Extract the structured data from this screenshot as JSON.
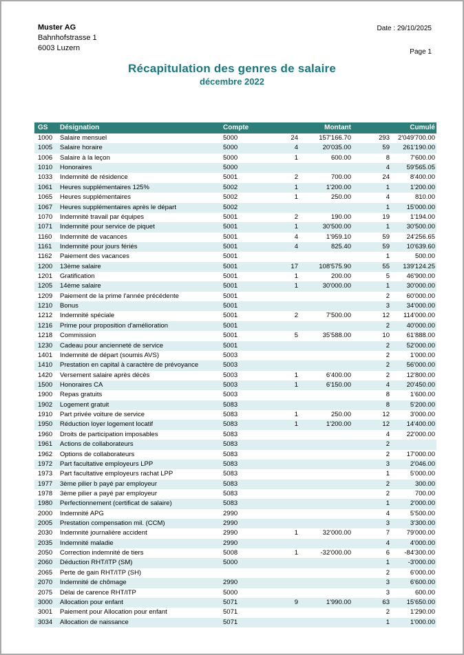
{
  "page": {
    "company": {
      "name": "Muster AG",
      "street": "Bahnhofstrasse 1",
      "city": "6003 Luzern"
    },
    "meta": {
      "date_label": "Date : 29/10/2025",
      "page_label": "Page 1"
    },
    "title": "Récapitulation des genres de salaire",
    "subtitle": "décembre 2022"
  },
  "colors": {
    "accent_teal_band": "#2d7d78",
    "title_teal": "#16797f",
    "row_alt_cyan": "#ddeff0"
  },
  "table": {
    "headers": {
      "gs": "GS",
      "designation": "Désignation",
      "compte": "Compte",
      "montant": "Montant",
      "cumule": "Cumulé"
    },
    "rows": [
      [
        "1000",
        "Salaire mensuel",
        "5000",
        "24",
        "157'166.70",
        "293",
        "2'049'700.00"
      ],
      [
        "1005",
        "Salaire horaire",
        "5000",
        "4",
        "20'035.00",
        "59",
        "261'190.00"
      ],
      [
        "1006",
        "Salaire à la leçon",
        "5000",
        "1",
        "600.00",
        "8",
        "7'600.00"
      ],
      [
        "1010",
        "Honoraires",
        "5000",
        "",
        "",
        "4",
        "59'565.05"
      ],
      [
        "1033",
        "Indemnité de résidence",
        "5001",
        "2",
        "700.00",
        "24",
        "8'400.00"
      ],
      [
        "1061",
        "Heures supplémentaires 125%",
        "5002",
        "1",
        "1'200.00",
        "1",
        "1'200.00"
      ],
      [
        "1065",
        "Heures supplémentaires",
        "5002",
        "1",
        "250.00",
        "4",
        "810.00"
      ],
      [
        "1067",
        "Heures supplémentaires après le départ",
        "5002",
        "",
        "",
        "1",
        "15'000.00"
      ],
      [
        "1070",
        "Indemnité travail par équipes",
        "5001",
        "2",
        "190.00",
        "19",
        "1'194.00"
      ],
      [
        "1071",
        "Indemnité pour service de piquet",
        "5001",
        "1",
        "30'500.00",
        "1",
        "30'500.00"
      ],
      [
        "1160",
        "Indemnité de vacances",
        "5001",
        "4",
        "1'959.10",
        "59",
        "24'256.65"
      ],
      [
        "1161",
        "Indemnité pour jours fériés",
        "5001",
        "4",
        "825.40",
        "59",
        "10'639.60"
      ],
      [
        "1162",
        "Paiement des vacances",
        "5001",
        "",
        "",
        "1",
        "500.00"
      ],
      [
        "1200",
        "13ème salaire",
        "5001",
        "17",
        "108'575.90",
        "55",
        "139'124.25"
      ],
      [
        "1201",
        "Gratification",
        "5001",
        "1",
        "200.00",
        "5",
        "46'900.00"
      ],
      [
        "1205",
        "14ème salaire",
        "5001",
        "1",
        "30'000.00",
        "1",
        "30'000.00"
      ],
      [
        "1209",
        "Paiement de la prime l'année précédente",
        "5001",
        "",
        "",
        "2",
        "60'000.00"
      ],
      [
        "1210",
        "Bonus",
        "5001",
        "",
        "",
        "3",
        "34'000.00"
      ],
      [
        "1212",
        "Indemnité spéciale",
        "5001",
        "2",
        "7'500.00",
        "12",
        "114'000.00"
      ],
      [
        "1216",
        "Prime pour proposition d'amélioration",
        "5001",
        "",
        "",
        "2",
        "40'000.00"
      ],
      [
        "1218",
        "Commission",
        "5001",
        "5",
        "35'588.00",
        "10",
        "61'888.00"
      ],
      [
        "1230",
        "Cadeau pour ancienneté de service",
        "5001",
        "",
        "",
        "2",
        "52'000.00"
      ],
      [
        "1401",
        "Indemnité de départ (soumis AVS)",
        "5003",
        "",
        "",
        "2",
        "1'000.00"
      ],
      [
        "1410",
        "Prestation en capital à caractère de prévoyance",
        "5003",
        "",
        "",
        "2",
        "56'000.00"
      ],
      [
        "1420",
        "Versement salaire après décès",
        "5003",
        "1",
        "6'400.00",
        "2",
        "12'800.00"
      ],
      [
        "1500",
        "Honoraires CA",
        "5003",
        "1",
        "6'150.00",
        "4",
        "20'450.00"
      ],
      [
        "1900",
        "Repas gratuits",
        "5003",
        "",
        "",
        "8",
        "1'600.00"
      ],
      [
        "1902",
        "Logement gratuit",
        "5083",
        "",
        "",
        "8",
        "5'200.00"
      ],
      [
        "1910",
        "Part privée voiture de service",
        "5083",
        "1",
        "250.00",
        "12",
        "3'000.00"
      ],
      [
        "1950",
        "Réduction loyer logement locatif",
        "5083",
        "1",
        "1'200.00",
        "12",
        "14'400.00"
      ],
      [
        "1960",
        "Droits de participation imposables",
        "5083",
        "",
        "",
        "4",
        "22'000.00"
      ],
      [
        "1961",
        "Actions de collaborateurs",
        "5083",
        "",
        "",
        "2",
        ""
      ],
      [
        "1962",
        "Options de collaborateurs",
        "5083",
        "",
        "",
        "2",
        "17'000.00"
      ],
      [
        "1972",
        "Part facultative employeurs LPP",
        "5083",
        "",
        "",
        "3",
        "2'046.00"
      ],
      [
        "1973",
        "Part facultative employeurs rachat LPP",
        "5083",
        "",
        "",
        "1",
        "5'000.00"
      ],
      [
        "1977",
        "3ème pilier b payé par employeur",
        "5083",
        "",
        "",
        "2",
        "300.00"
      ],
      [
        "1978",
        "3ème pilier a payé par employeur",
        "5083",
        "",
        "",
        "2",
        "700.00"
      ],
      [
        "1980",
        "Perfectionnement (certificat de salaire)",
        "5083",
        "",
        "",
        "1",
        "2'000.00"
      ],
      [
        "2000",
        "Indemnité APG",
        "2990",
        "",
        "",
        "4",
        "5'500.00"
      ],
      [
        "2005",
        "Prestation compensation mil. (CCM)",
        "2990",
        "",
        "",
        "3",
        "3'300.00"
      ],
      [
        "2030",
        "Indemnité journalière accident",
        "2990",
        "1",
        "32'000.00",
        "7",
        "79'000.00"
      ],
      [
        "2035",
        "Indemnité maladie",
        "2990",
        "",
        "",
        "4",
        "4'000.00"
      ],
      [
        "2050",
        "Correction indemnité de tiers",
        "5008",
        "1",
        "-32'000.00",
        "6",
        "-84'300.00"
      ],
      [
        "2060",
        "Déduction RHT/ITP (SM)",
        "5000",
        "",
        "",
        "1",
        "-3'000.00"
      ],
      [
        "2065",
        "Perte de gain RHT/ITP (SH)",
        "",
        "",
        "",
        "2",
        "6'000.00"
      ],
      [
        "2070",
        "Indemnité de chômage",
        "2990",
        "",
        "",
        "3",
        "6'600.00"
      ],
      [
        "2075",
        "Délai de carence RHT/ITP",
        "5000",
        "",
        "",
        "3",
        "600.00"
      ],
      [
        "3000",
        "Allocation pour enfant",
        "5071",
        "9",
        "1'990.00",
        "63",
        "15'650.00"
      ],
      [
        "3001",
        "Paiement pour Allocation pour enfant",
        "5071",
        "",
        "",
        "2",
        "1'290.00"
      ],
      [
        "3034",
        "Allocation de naissance",
        "5071",
        "",
        "",
        "1",
        "1'000.00"
      ]
    ]
  }
}
